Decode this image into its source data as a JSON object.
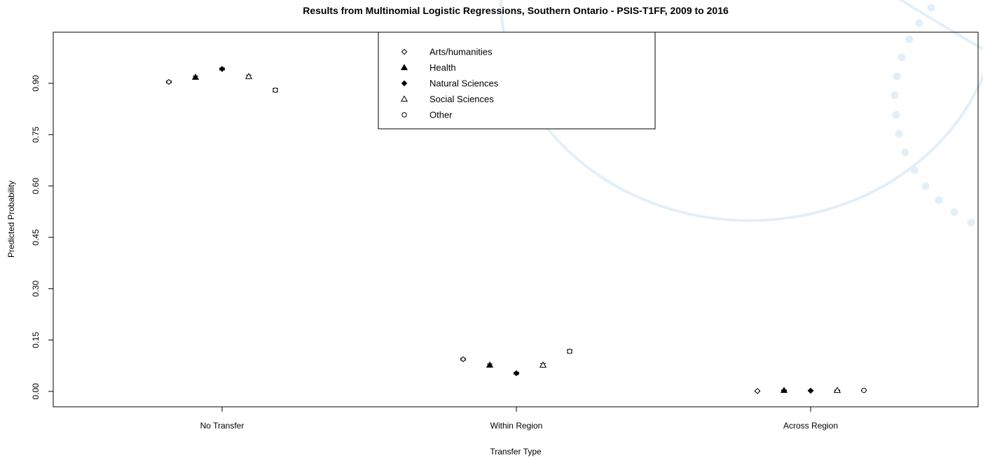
{
  "chart_data": {
    "type": "scatter",
    "title": "Results from Multinomial Logistic Regressions, Southern Ontario - PSIS-T1FF, 2009 to 2016",
    "xlabel": "Transfer Type",
    "ylabel": "Predicted Probability",
    "categories": [
      "No Transfer",
      "Within Region",
      "Across Region"
    ],
    "ylim": [
      -0.05,
      1.05
    ],
    "yticks": [
      "0.00",
      "0.15",
      "0.30",
      "0.45",
      "0.60",
      "0.75",
      "0.90"
    ],
    "grid": false,
    "legend_position": "top-center",
    "series": [
      {
        "name": "Arts/humanities",
        "marker": "diamond-open",
        "values": [
          0.904,
          0.094,
          0.001
        ],
        "error": [
          0.003,
          0.003,
          0.001
        ]
      },
      {
        "name": "Health",
        "marker": "triangle-filled",
        "values": [
          0.918,
          0.077,
          0.003
        ],
        "error": [
          0.003,
          0.003,
          0.001
        ]
      },
      {
        "name": "Natural Sciences",
        "marker": "diamond-filled",
        "values": [
          0.942,
          0.053,
          0.002
        ],
        "error": [
          0.003,
          0.003,
          0.001
        ]
      },
      {
        "name": "Social Sciences",
        "marker": "triangle-open",
        "values": [
          0.92,
          0.077,
          0.003
        ],
        "error": [
          0.004,
          0.004,
          0.001
        ]
      },
      {
        "name": "Other",
        "marker": "circle-open",
        "values": [
          0.88,
          0.117,
          0.003
        ],
        "error": [
          0.005,
          0.005,
          0.001
        ]
      }
    ]
  },
  "decoration": {
    "watermark_color": "#e3eff7"
  }
}
